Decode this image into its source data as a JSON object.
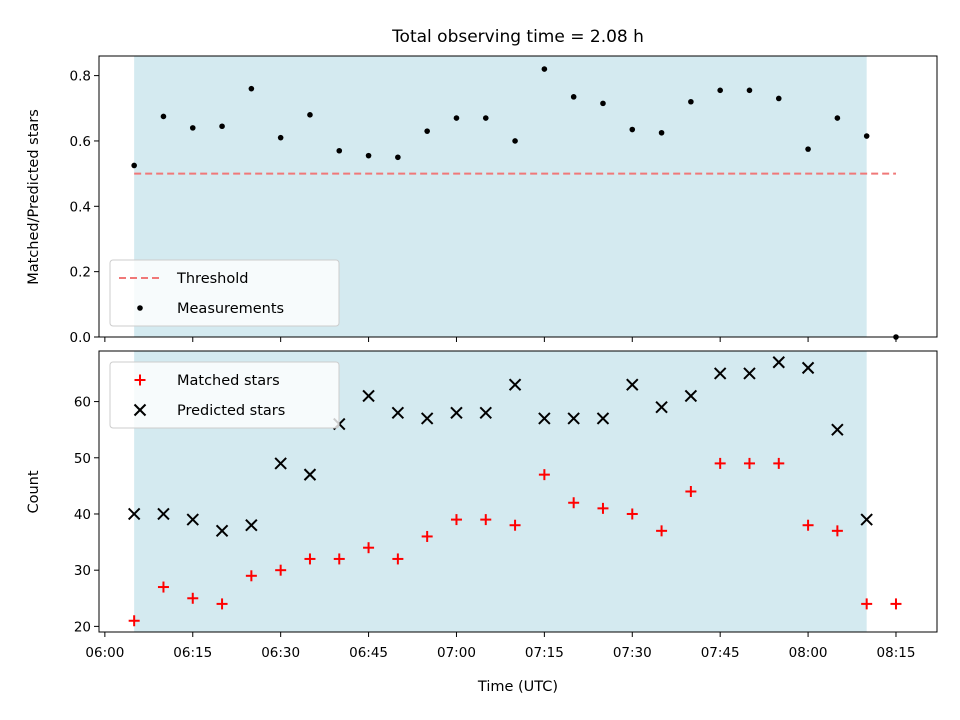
{
  "chart_data": {
    "title": "Total observing time = 2.08 h",
    "xlabel": "Time (UTC)",
    "x_ticks": [
      "06:00",
      "06:15",
      "06:30",
      "06:45",
      "07:00",
      "07:15",
      "07:30",
      "07:45",
      "08:00",
      "08:15"
    ],
    "x_range": [
      "05:59",
      "08:22"
    ],
    "observing_window": [
      "06:05",
      "08:10"
    ],
    "observing_window_color": "#d4eaf0",
    "panels": [
      {
        "type": "scatter",
        "ylabel": "Matched/Predicted stars",
        "ylim": [
          0,
          0.86
        ],
        "y_ticks": [
          "0.0",
          "0.2",
          "0.4",
          "0.6",
          "0.8"
        ],
        "legend_position": "lower-left",
        "series": [
          {
            "name": "Threshold",
            "kind": "dashed-line",
            "color": "#f07878",
            "x": [
              "06:05",
              "08:15"
            ],
            "y": [
              0.5,
              0.5
            ]
          },
          {
            "name": "Measurements",
            "kind": "dot",
            "color": "#000000",
            "x": [
              "06:05",
              "06:10",
              "06:15",
              "06:20",
              "06:25",
              "06:30",
              "06:35",
              "06:40",
              "06:45",
              "06:50",
              "06:55",
              "07:00",
              "07:05",
              "07:10",
              "07:15",
              "07:20",
              "07:25",
              "07:30",
              "07:35",
              "07:40",
              "07:45",
              "07:50",
              "07:55",
              "08:00",
              "08:05",
              "08:10",
              "08:15"
            ],
            "y": [
              0.525,
              0.675,
              0.64,
              0.645,
              0.76,
              0.61,
              0.68,
              0.57,
              0.555,
              0.55,
              0.63,
              0.67,
              0.67,
              0.6,
              0.82,
              0.735,
              0.715,
              0.635,
              0.625,
              0.72,
              0.755,
              0.755,
              0.73,
              0.575,
              0.67,
              0.615,
              0.0
            ]
          }
        ]
      },
      {
        "type": "scatter",
        "ylabel": "Count",
        "ylim": [
          19,
          69
        ],
        "y_ticks": [
          "20",
          "30",
          "40",
          "50",
          "60"
        ],
        "legend_position": "upper-left",
        "series": [
          {
            "name": "Matched stars",
            "kind": "plus",
            "color": "#ff0000",
            "x": [
              "06:05",
              "06:10",
              "06:15",
              "06:20",
              "06:25",
              "06:30",
              "06:35",
              "06:40",
              "06:45",
              "06:50",
              "06:55",
              "07:00",
              "07:05",
              "07:10",
              "07:15",
              "07:20",
              "07:25",
              "07:30",
              "07:35",
              "07:40",
              "07:45",
              "07:50",
              "07:55",
              "08:00",
              "08:05",
              "08:10",
              "08:15"
            ],
            "y": [
              21,
              27,
              25,
              24,
              29,
              30,
              32,
              32,
              34,
              32,
              36,
              39,
              39,
              38,
              47,
              42,
              41,
              40,
              37,
              44,
              49,
              49,
              49,
              38,
              37,
              24,
              24
            ]
          },
          {
            "name": "Predicted stars",
            "kind": "x",
            "color": "#000000",
            "x": [
              "06:05",
              "06:10",
              "06:15",
              "06:20",
              "06:25",
              "06:30",
              "06:35",
              "06:40",
              "06:45",
              "06:50",
              "06:55",
              "07:00",
              "07:05",
              "07:10",
              "07:15",
              "07:20",
              "07:25",
              "07:30",
              "07:35",
              "07:40",
              "07:45",
              "07:50",
              "07:55",
              "08:00",
              "08:05",
              "08:10"
            ],
            "y": [
              40,
              40,
              39,
              37,
              38,
              49,
              47,
              56,
              61,
              58,
              57,
              58,
              58,
              63,
              57,
              57,
              57,
              63,
              59,
              61,
              65,
              65,
              67,
              66,
              55,
              39
            ]
          }
        ]
      }
    ]
  }
}
